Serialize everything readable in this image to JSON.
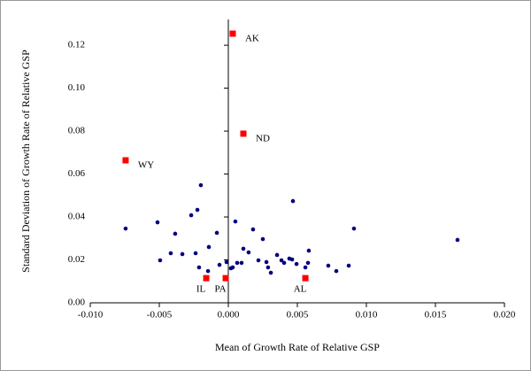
{
  "chart_data": {
    "type": "scatter",
    "x_label": "Mean of Growth Rate of Relative GSP",
    "y_label": "Standard Deviation of Growth Rate of Relative GSP",
    "xlim": [
      -0.01,
      0.02
    ],
    "ylim": [
      0,
      0.132
    ],
    "xticks": [
      {
        "value": -0.01,
        "label": "-0.010"
      },
      -0.005,
      {
        "value": 0,
        "label": "0.000"
      },
      0.005,
      {
        "value": 0.01,
        "label": "0.010"
      },
      0.015,
      {
        "value": 0.02,
        "label": "0.020"
      }
    ],
    "yticks": [
      {
        "value": 0,
        "label": "0.00"
      },
      0.02,
      0.04,
      0.06,
      0.08,
      {
        "value": 0.1,
        "label": "0.10"
      },
      0.12
    ],
    "series": [
      {
        "color": "#000080",
        "marker": "circle",
        "x": [
          -0.00744,
          -0.00513,
          -0.00494,
          -0.00417,
          -0.00385,
          -0.00333,
          -0.00269,
          -0.00224,
          -0.00199,
          -0.00237,
          -0.00212,
          -0.00141,
          -0.00147,
          -0.00083,
          -0.00064,
          -0.00013,
          0.00019,
          0.00032,
          0.00051,
          0.00064,
          0.00096,
          0.00109,
          0.00147,
          0.00179,
          0.00218,
          0.0025,
          0.00276,
          0.00288,
          0.00308,
          0.00353,
          0.00385,
          0.00404,
          0.00442,
          0.00462,
          0.00468,
          0.00494,
          0.00558,
          0.00577,
          0.00583,
          0.00724,
          0.00782,
          0.00872,
          0.0091,
          0.0166
        ],
        "y": [
          0.0346,
          0.0375,
          0.0198,
          0.0231,
          0.0322,
          0.0227,
          0.0408,
          0.0433,
          0.0548,
          0.0231,
          0.0165,
          0.026,
          0.0148,
          0.0326,
          0.0177,
          0.019,
          0.0161,
          0.0165,
          0.0379,
          0.0186,
          0.0186,
          0.0252,
          0.0235,
          0.0342,
          0.0198,
          0.0297,
          0.019,
          0.0165,
          0.014,
          0.0223,
          0.0198,
          0.0186,
          0.0206,
          0.0202,
          0.0474,
          0.0181,
          0.0165,
          0.0186,
          0.0243,
          0.0173,
          0.0148,
          0.0173,
          0.0346,
          0.0293
        ]
      },
      {
        "color": "#ff0000",
        "marker": "square",
        "x": [
          0.00032,
          0.00109,
          -0.00744,
          -0.0016,
          -0.00019,
          0.00558
        ],
        "y": [
          0.1254,
          0.0788,
          0.0664,
          0.0115,
          0.0115,
          0.0115
        ],
        "point_labels": [
          "AK",
          "ND",
          "WY",
          "IL",
          "PA",
          "AL"
        ]
      }
    ]
  }
}
